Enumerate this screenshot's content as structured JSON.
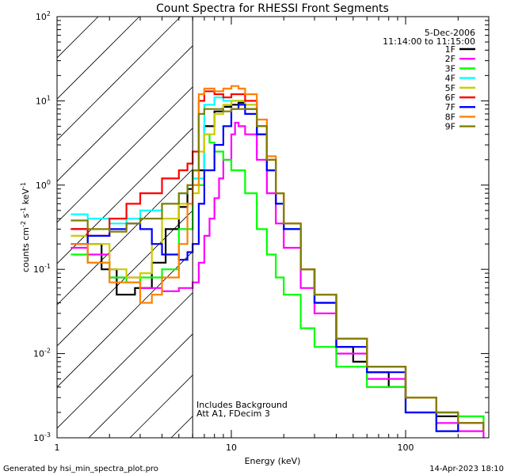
{
  "chart_data": {
    "type": "line",
    "title": "Count Spectra for RHESSI Front Segments",
    "xlabel": "Energy (keV)",
    "ylabel": "counts cm-2 s-1 keV-1",
    "ylabel_parts": {
      "base": "counts cm",
      "exp1": "-2",
      "mid1": " s",
      "exp2": "-1",
      "mid2": " keV",
      "exp3": "-1"
    },
    "x_scale": "log",
    "y_scale": "log",
    "xlim": [
      1,
      300
    ],
    "ylim": [
      0.001,
      100
    ],
    "x_ticks": [
      {
        "value": 1,
        "label": "1"
      },
      {
        "value": 10,
        "label": "10"
      },
      {
        "value": 100,
        "label": "100"
      }
    ],
    "y_ticks": [
      {
        "value": 0.001,
        "base": "10",
        "exp": "-3"
      },
      {
        "value": 0.01,
        "base": "10",
        "exp": "-2"
      },
      {
        "value": 0.1,
        "base": "10",
        "exp": "-1"
      },
      {
        "value": 1,
        "base": "10",
        "exp": "0"
      },
      {
        "value": 10,
        "base": "10",
        "exp": "1"
      },
      {
        "value": 100,
        "base": "10",
        "exp": "2"
      }
    ],
    "hatch_region": [
      1,
      6
    ],
    "cutoff_energy": 6,
    "header_annotation": [
      "5-Dec-2006",
      "11:14:00 to 11:15:00"
    ],
    "plot_annotation": [
      "Includes Background",
      "Att A1, FDecim  3"
    ],
    "series": [
      {
        "name": "1F",
        "color": "#000000",
        "points": [
          [
            1.2,
            0.3
          ],
          [
            1.5,
            0.2
          ],
          [
            1.8,
            0.1
          ],
          [
            2.2,
            0.05
          ],
          [
            2.8,
            0.06
          ],
          [
            3.5,
            0.12
          ],
          [
            4.2,
            0.3
          ],
          [
            5,
            0.55
          ],
          [
            5.6,
            0.9
          ],
          [
            6,
            1.5
          ],
          [
            7,
            5
          ],
          [
            8,
            7.5
          ],
          [
            9,
            8.5
          ],
          [
            10,
            9
          ],
          [
            11,
            9.5
          ],
          [
            12,
            8
          ],
          [
            14,
            4
          ],
          [
            16,
            1.5
          ],
          [
            18,
            0.6
          ],
          [
            20,
            0.3
          ],
          [
            25,
            0.1
          ],
          [
            30,
            0.04
          ],
          [
            40,
            0.012
          ],
          [
            50,
            0.008
          ],
          [
            60,
            0.006
          ],
          [
            80,
            0.004
          ],
          [
            100,
            0.003
          ],
          [
            150,
            0.0018
          ],
          [
            200,
            0.0015
          ],
          [
            280,
            0.0012
          ]
        ]
      },
      {
        "name": "2F",
        "color": "#ff00ff",
        "points": [
          [
            1.2,
            0.18
          ],
          [
            1.5,
            0.15
          ],
          [
            2,
            0.08
          ],
          [
            3,
            0.06
          ],
          [
            4,
            0.055
          ],
          [
            5,
            0.06
          ],
          [
            6,
            0.07
          ],
          [
            6.5,
            0.12
          ],
          [
            7,
            0.25
          ],
          [
            7.5,
            0.4
          ],
          [
            8,
            0.7
          ],
          [
            8.5,
            1.2
          ],
          [
            9,
            2
          ],
          [
            10,
            4
          ],
          [
            10.5,
            5.5
          ],
          [
            11,
            5
          ],
          [
            12,
            4
          ],
          [
            14,
            2
          ],
          [
            16,
            0.8
          ],
          [
            18,
            0.35
          ],
          [
            20,
            0.18
          ],
          [
            25,
            0.06
          ],
          [
            30,
            0.03
          ],
          [
            40,
            0.01
          ],
          [
            60,
            0.005
          ],
          [
            100,
            0.002
          ],
          [
            150,
            0.0015
          ],
          [
            200,
            0.0012
          ],
          [
            280,
            0.001
          ]
        ]
      },
      {
        "name": "3F",
        "color": "#00ff00",
        "points": [
          [
            1.2,
            0.15
          ],
          [
            1.5,
            0.12
          ],
          [
            2,
            0.08
          ],
          [
            2.5,
            0.07
          ],
          [
            3,
            0.08
          ],
          [
            4,
            0.1
          ],
          [
            5,
            0.3
          ],
          [
            6,
            1
          ],
          [
            7,
            4
          ],
          [
            7.5,
            3.2
          ],
          [
            8,
            2.5
          ],
          [
            9,
            2
          ],
          [
            10,
            1.5
          ],
          [
            12,
            0.8
          ],
          [
            14,
            0.3
          ],
          [
            16,
            0.15
          ],
          [
            18,
            0.08
          ],
          [
            20,
            0.05
          ],
          [
            25,
            0.02
          ],
          [
            30,
            0.012
          ],
          [
            40,
            0.007
          ],
          [
            60,
            0.004
          ],
          [
            100,
            0.002
          ],
          [
            150,
            0.0012
          ],
          [
            200,
            0.0018
          ],
          [
            280,
            0.0015
          ]
        ]
      },
      {
        "name": "4F",
        "color": "#00ffff",
        "points": [
          [
            1.2,
            0.45
          ],
          [
            1.5,
            0.4
          ],
          [
            2,
            0.35
          ],
          [
            2.5,
            0.4
          ],
          [
            3,
            0.5
          ],
          [
            4,
            0.6
          ],
          [
            5,
            0.8
          ],
          [
            5.6,
            1
          ],
          [
            6,
            1.2
          ],
          [
            7,
            9
          ],
          [
            8,
            11
          ],
          [
            9,
            10
          ],
          [
            10,
            10
          ],
          [
            12,
            9
          ],
          [
            14,
            5
          ],
          [
            16,
            2
          ],
          [
            18,
            0.8
          ],
          [
            20,
            0.3
          ],
          [
            25,
            0.1
          ],
          [
            30,
            0.05
          ],
          [
            40,
            0.015
          ],
          [
            60,
            0.007
          ],
          [
            100,
            0.003
          ],
          [
            150,
            0.002
          ],
          [
            200,
            0.0015
          ],
          [
            280,
            0.0012
          ]
        ]
      },
      {
        "name": "5F",
        "color": "#cccc00",
        "points": [
          [
            1.2,
            0.25
          ],
          [
            1.5,
            0.2
          ],
          [
            2,
            0.1
          ],
          [
            2.5,
            0.08
          ],
          [
            3,
            0.09
          ],
          [
            3.5,
            0.2
          ],
          [
            4,
            0.4
          ],
          [
            5,
            0.6
          ],
          [
            6,
            0.8
          ],
          [
            6.5,
            2.5
          ],
          [
            7,
            4
          ],
          [
            8,
            7
          ],
          [
            9,
            9
          ],
          [
            10,
            10
          ],
          [
            12,
            9
          ],
          [
            14,
            5
          ],
          [
            16,
            2
          ],
          [
            18,
            0.8
          ],
          [
            20,
            0.35
          ],
          [
            25,
            0.1
          ],
          [
            30,
            0.05
          ],
          [
            40,
            0.015
          ],
          [
            60,
            0.007
          ],
          [
            100,
            0.003
          ],
          [
            150,
            0.002
          ],
          [
            200,
            0.0015
          ],
          [
            280,
            0.0012
          ]
        ]
      },
      {
        "name": "6F",
        "color": "#ff0000",
        "points": [
          [
            1.2,
            0.3
          ],
          [
            1.5,
            0.25
          ],
          [
            2,
            0.4
          ],
          [
            2.5,
            0.6
          ],
          [
            3,
            0.8
          ],
          [
            4,
            1.2
          ],
          [
            5,
            1.5
          ],
          [
            5.6,
            1.8
          ],
          [
            6,
            2.5
          ],
          [
            6.5,
            10
          ],
          [
            7,
            13
          ],
          [
            8,
            12
          ],
          [
            9,
            11
          ],
          [
            10,
            12
          ],
          [
            12,
            10
          ],
          [
            14,
            5
          ],
          [
            16,
            2
          ],
          [
            18,
            0.8
          ],
          [
            20,
            0.35
          ],
          [
            25,
            0.1
          ],
          [
            30,
            0.05
          ],
          [
            40,
            0.015
          ],
          [
            60,
            0.007
          ],
          [
            100,
            0.003
          ],
          [
            150,
            0.002
          ],
          [
            200,
            0.0015
          ],
          [
            280,
            0.0012
          ]
        ]
      },
      {
        "name": "7F",
        "color": "#0000ff",
        "points": [
          [
            1.2,
            0.2
          ],
          [
            1.5,
            0.25
          ],
          [
            2,
            0.3
          ],
          [
            2.5,
            0.35
          ],
          [
            3,
            0.3
          ],
          [
            3.5,
            0.2
          ],
          [
            4,
            0.15
          ],
          [
            5,
            0.13
          ],
          [
            5.6,
            0.16
          ],
          [
            6,
            0.2
          ],
          [
            6.5,
            0.6
          ],
          [
            7,
            1.5
          ],
          [
            8,
            3
          ],
          [
            9,
            5
          ],
          [
            10,
            8
          ],
          [
            11,
            9
          ],
          [
            12,
            7
          ],
          [
            14,
            4
          ],
          [
            16,
            1.5
          ],
          [
            18,
            0.6
          ],
          [
            20,
            0.3
          ],
          [
            25,
            0.1
          ],
          [
            30,
            0.04
          ],
          [
            40,
            0.012
          ],
          [
            60,
            0.006
          ],
          [
            100,
            0.002
          ],
          [
            150,
            0.0012
          ],
          [
            200,
            0.0015
          ],
          [
            280,
            0.0012
          ]
        ]
      },
      {
        "name": "8F",
        "color": "#ff8000",
        "points": [
          [
            1.2,
            0.2
          ],
          [
            1.5,
            0.12
          ],
          [
            2,
            0.07
          ],
          [
            3,
            0.04
          ],
          [
            3.5,
            0.05
          ],
          [
            4,
            0.08
          ],
          [
            5,
            0.2
          ],
          [
            5.6,
            0.6
          ],
          [
            6,
            1
          ],
          [
            6.5,
            12
          ],
          [
            7,
            14
          ],
          [
            8,
            13
          ],
          [
            9,
            14
          ],
          [
            10,
            15
          ],
          [
            11,
            14
          ],
          [
            12,
            12
          ],
          [
            14,
            6
          ],
          [
            16,
            2.2
          ],
          [
            18,
            0.8
          ],
          [
            20,
            0.35
          ],
          [
            25,
            0.1
          ],
          [
            30,
            0.05
          ],
          [
            40,
            0.015
          ],
          [
            60,
            0.007
          ],
          [
            100,
            0.003
          ],
          [
            150,
            0.002
          ],
          [
            200,
            0.0015
          ],
          [
            280,
            0.0012
          ]
        ]
      },
      {
        "name": "9F",
        "color": "#808000",
        "points": [
          [
            1.2,
            0.38
          ],
          [
            1.5,
            0.3
          ],
          [
            2,
            0.28
          ],
          [
            2.5,
            0.35
          ],
          [
            3,
            0.4
          ],
          [
            4,
            0.6
          ],
          [
            5,
            0.8
          ],
          [
            5.6,
            1
          ],
          [
            6,
            1.5
          ],
          [
            6.5,
            7
          ],
          [
            7,
            8
          ],
          [
            8,
            8
          ],
          [
            9,
            7.5
          ],
          [
            10,
            8
          ],
          [
            12,
            8
          ],
          [
            14,
            5
          ],
          [
            16,
            2
          ],
          [
            18,
            0.8
          ],
          [
            20,
            0.35
          ],
          [
            25,
            0.1
          ],
          [
            30,
            0.05
          ],
          [
            40,
            0.015
          ],
          [
            60,
            0.007
          ],
          [
            100,
            0.003
          ],
          [
            150,
            0.002
          ],
          [
            200,
            0.0015
          ],
          [
            280,
            0.0012
          ]
        ]
      }
    ]
  },
  "footer": {
    "left": "Generated by hsi_min_spectra_plot.pro",
    "right": "14-Apr-2023 18:10"
  }
}
